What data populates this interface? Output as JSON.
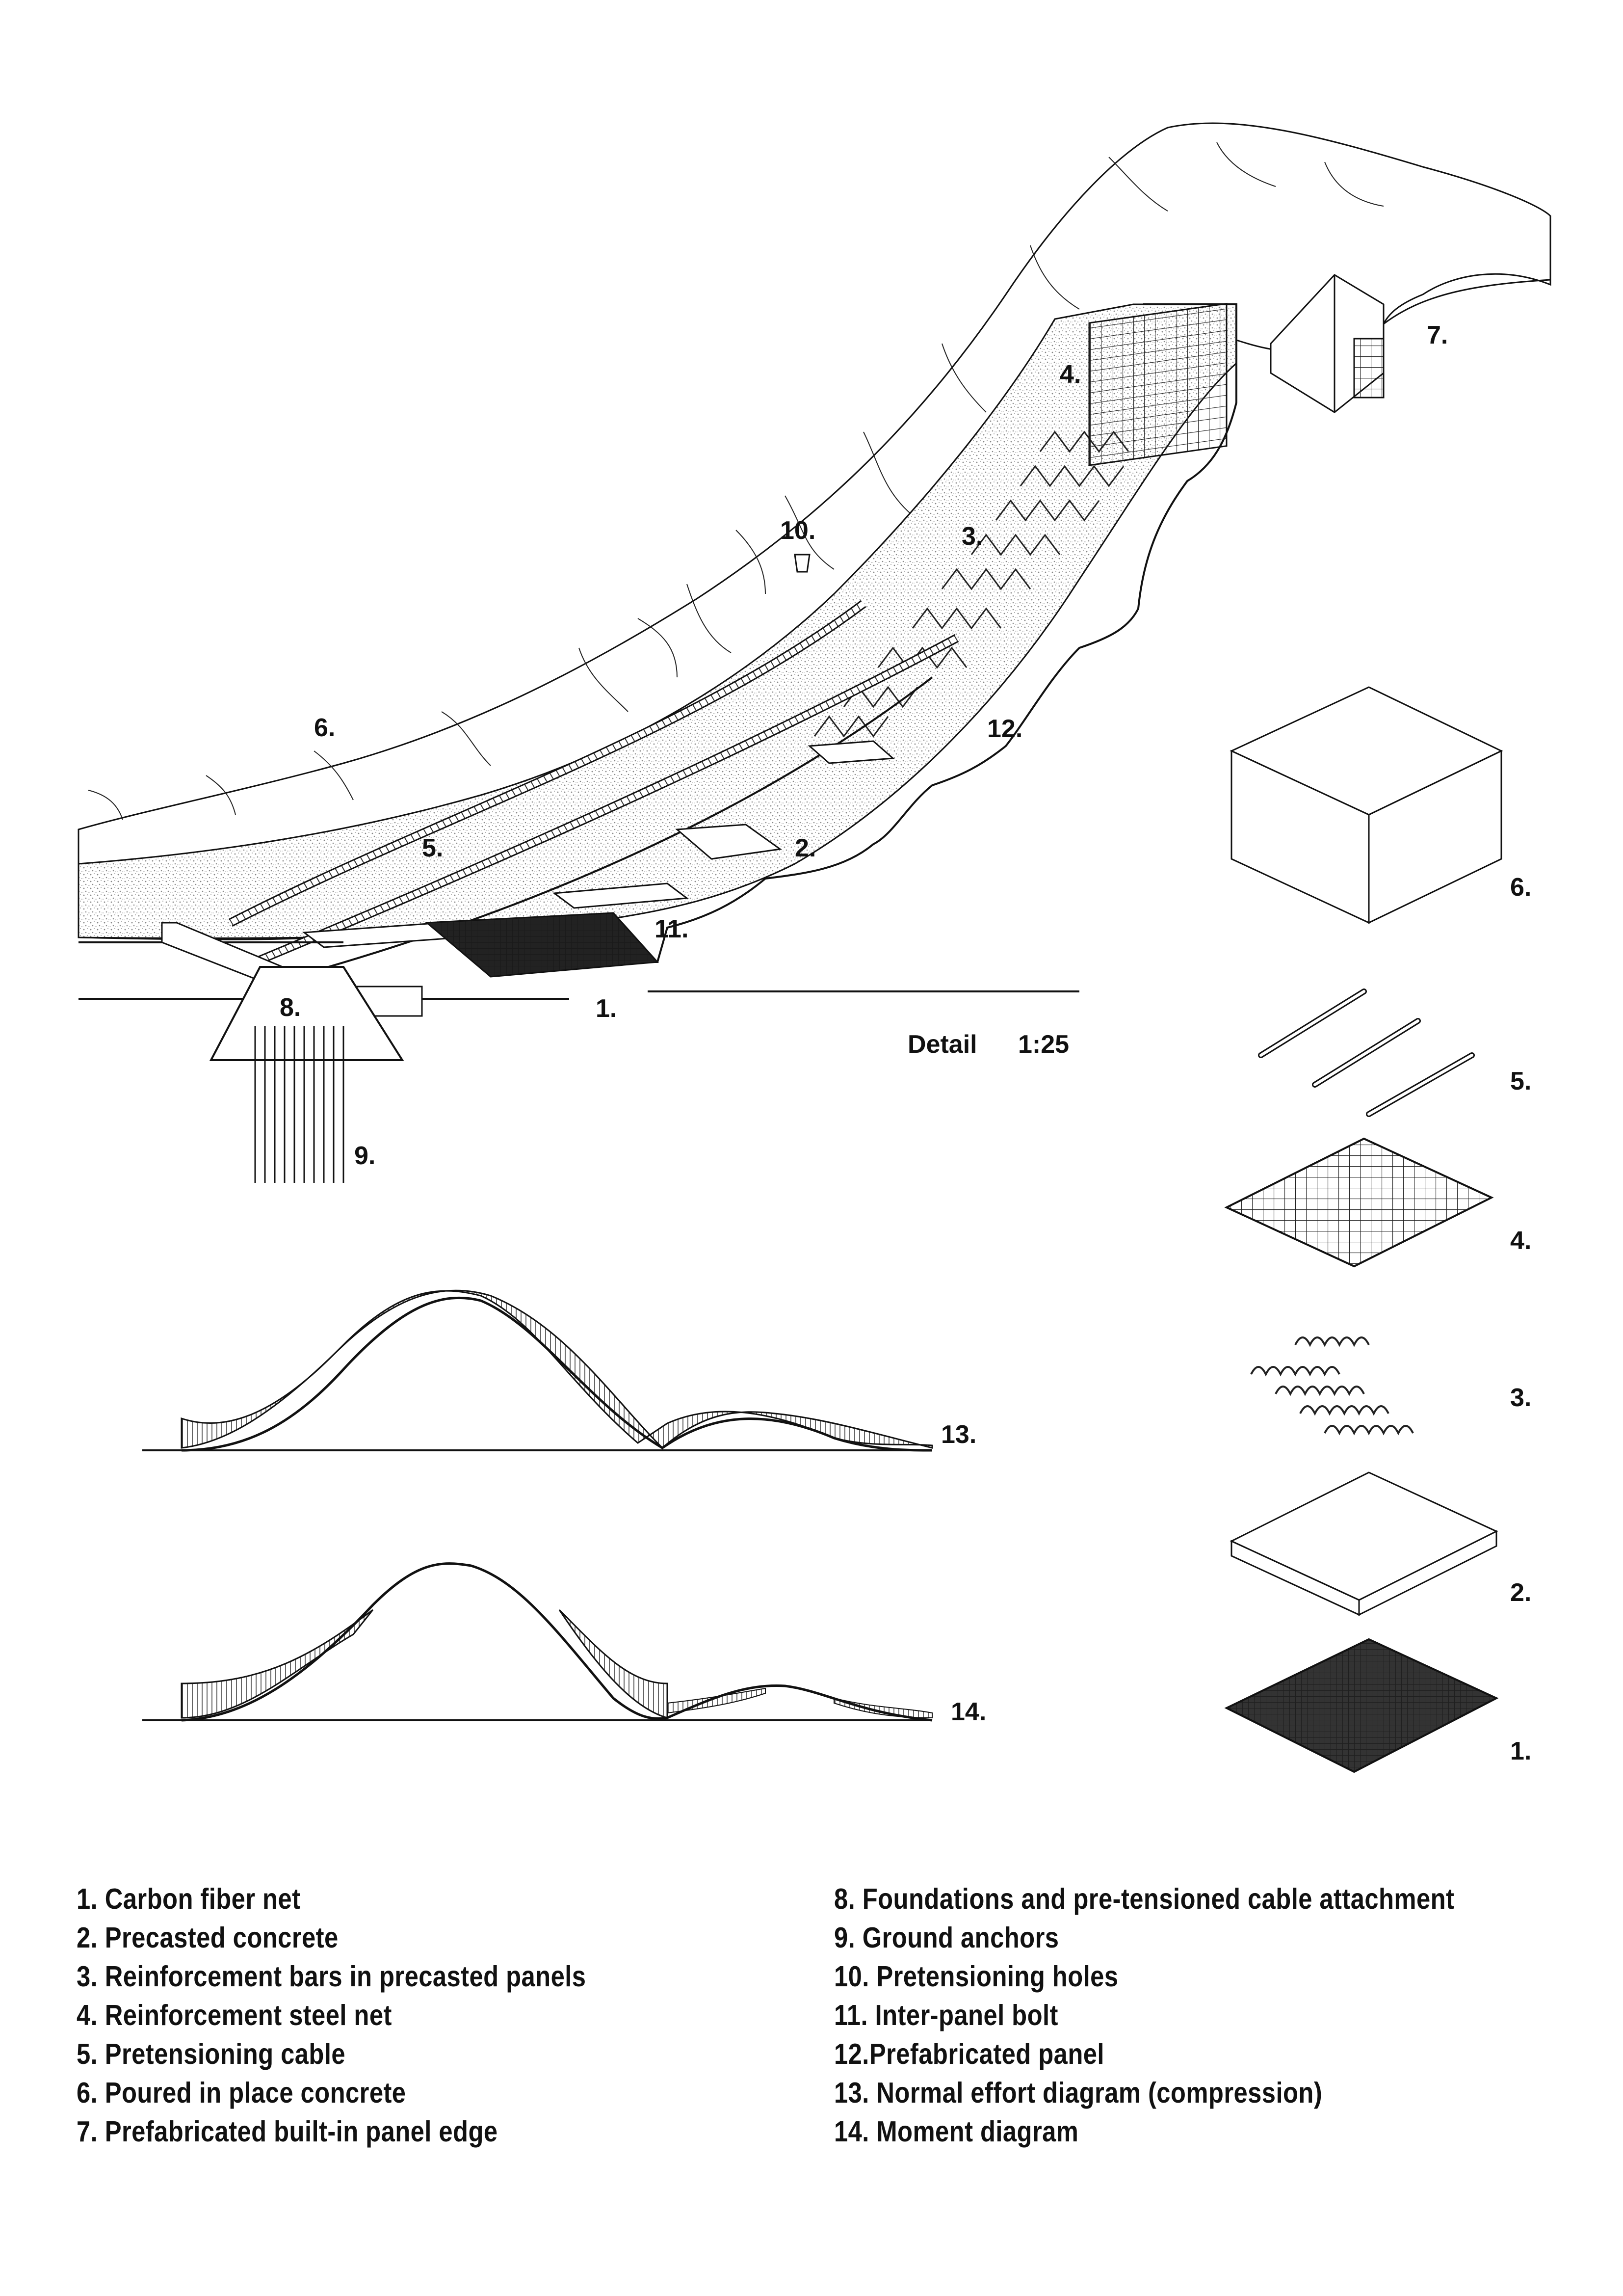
{
  "detail": {
    "scale_label": "Detail",
    "scale_value": "1:25"
  },
  "callouts": {
    "c1": "1.",
    "c2": "2.",
    "c3": "3.",
    "c4": "4.",
    "c5": "5.",
    "c6": "6.",
    "c7": "7.",
    "c8": "8.",
    "c9": "9.",
    "c10": "10.",
    "c11": "11.",
    "c12": "12."
  },
  "exploded_layers": [
    "6.",
    "5.",
    "4.",
    "3.",
    "2.",
    "1."
  ],
  "diagrams": {
    "normal": "13.",
    "moment": "14."
  },
  "legend_left": [
    "1. Carbon fiber net",
    "2. Precasted concrete",
    "3. Reinforcement bars in precasted panels",
    "4. Reinforcement steel net",
    "5. Pretensioning cable",
    "6. Poured in place concrete",
    "7. Prefabricated built-in panel edge"
  ],
  "legend_right": [
    "8. Foundations and pre-tensioned cable attachment",
    "9. Ground anchors",
    "10. Pretensioning holes",
    "11. Inter-panel bolt",
    "12.Prefabricated panel",
    "13. Normal effort diagram (compression)",
    "14. Moment diagram"
  ],
  "colors": {
    "ink": "#111111",
    "paper": "#ffffff",
    "stipple": "#b8b8b8"
  }
}
